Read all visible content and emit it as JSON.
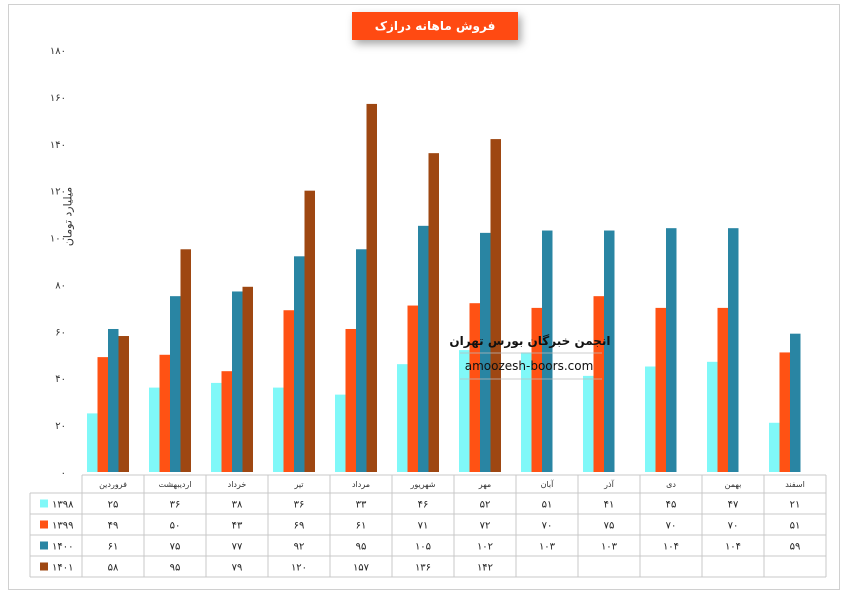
{
  "chart_data": {
    "type": "bar",
    "title": "فروش ماهانه درازک",
    "ylabel": "میلیارد تومان",
    "ylim": [
      0,
      180
    ],
    "yticks": [
      "۰",
      "۲۰",
      "۴۰",
      "۶۰",
      "۸۰",
      "۱۰۰",
      "۱۲۰",
      "۱۴۰",
      "۱۶۰",
      "۱۸۰"
    ],
    "ytick_values": [
      0,
      20,
      40,
      60,
      80,
      100,
      120,
      140,
      160,
      180
    ],
    "categories": [
      "فروردین",
      "اردیبهشت",
      "خرداد",
      "تیر",
      "مرداد",
      "شهریور",
      "مهر",
      "آبان",
      "آذر",
      "دی",
      "بهمن",
      "اسفند"
    ],
    "legend_position": "table-left",
    "series": [
      {
        "name": "۱۳۹۸",
        "color": "#80f8f8",
        "values": [
          25,
          36,
          38,
          36,
          33,
          46,
          52,
          51,
          41,
          45,
          47,
          21
        ],
        "labels": [
          "۲۵",
          "۳۶",
          "۳۸",
          "۳۶",
          "۳۳",
          "۴۶",
          "۵۲",
          "۵۱",
          "۴۱",
          "۴۵",
          "۴۷",
          "۲۱"
        ]
      },
      {
        "name": "۱۳۹۹",
        "color": "#ff5214",
        "values": [
          49,
          50,
          43,
          69,
          61,
          71,
          72,
          70,
          75,
          70,
          70,
          51
        ],
        "labels": [
          "۴۹",
          "۵۰",
          "۴۳",
          "۶۹",
          "۶۱",
          "۷۱",
          "۷۲",
          "۷۰",
          "۷۵",
          "۷۰",
          "۷۰",
          "۵۱"
        ]
      },
      {
        "name": "۱۴۰۰",
        "color": "#2985a3",
        "values": [
          61,
          75,
          77,
          92,
          95,
          105,
          102,
          103,
          103,
          104,
          104,
          59
        ],
        "labels": [
          "۶۱",
          "۷۵",
          "۷۷",
          "۹۲",
          "۹۵",
          "۱۰۵",
          "۱۰۲",
          "۱۰۳",
          "۱۰۳",
          "۱۰۴",
          "۱۰۴",
          "۵۹"
        ]
      },
      {
        "name": "۱۴۰۱",
        "color": "#9e4712",
        "values": [
          58,
          95,
          79,
          120,
          157,
          136,
          142,
          null,
          null,
          null,
          null,
          null
        ],
        "labels": [
          "۵۸",
          "۹۵",
          "۷۹",
          "۱۲۰",
          "۱۵۷",
          "۱۳۶",
          "۱۴۲",
          "",
          "",
          "",
          "",
          ""
        ]
      }
    ],
    "grid": false
  },
  "watermark": {
    "line1": "انجمن خبرگان بورس تهران",
    "line2": "amoozesh-boors.com"
  }
}
